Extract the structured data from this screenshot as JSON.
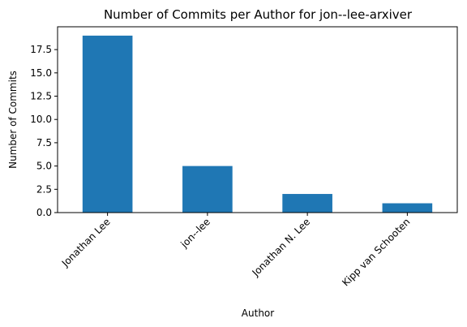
{
  "chart_data": {
    "type": "bar",
    "title": "Number of Commits per Author for jon--lee-arxiver",
    "xlabel": "Author",
    "ylabel": "Number of Commits",
    "categories": [
      "Jonathan Lee",
      "jon--lee",
      "Jonathan N. Lee",
      "Kipp van Schooten"
    ],
    "values": [
      19,
      5,
      2,
      1
    ],
    "ylim": [
      0,
      19.95
    ],
    "yticks": [
      0.0,
      2.5,
      5.0,
      7.5,
      10.0,
      12.5,
      15.0,
      17.5
    ],
    "ytick_labels": [
      "0.0",
      "2.5",
      "5.0",
      "7.5",
      "10.0",
      "12.5",
      "15.0",
      "17.5"
    ],
    "color": "#1f77b4",
    "grid": false,
    "legend": "none"
  }
}
